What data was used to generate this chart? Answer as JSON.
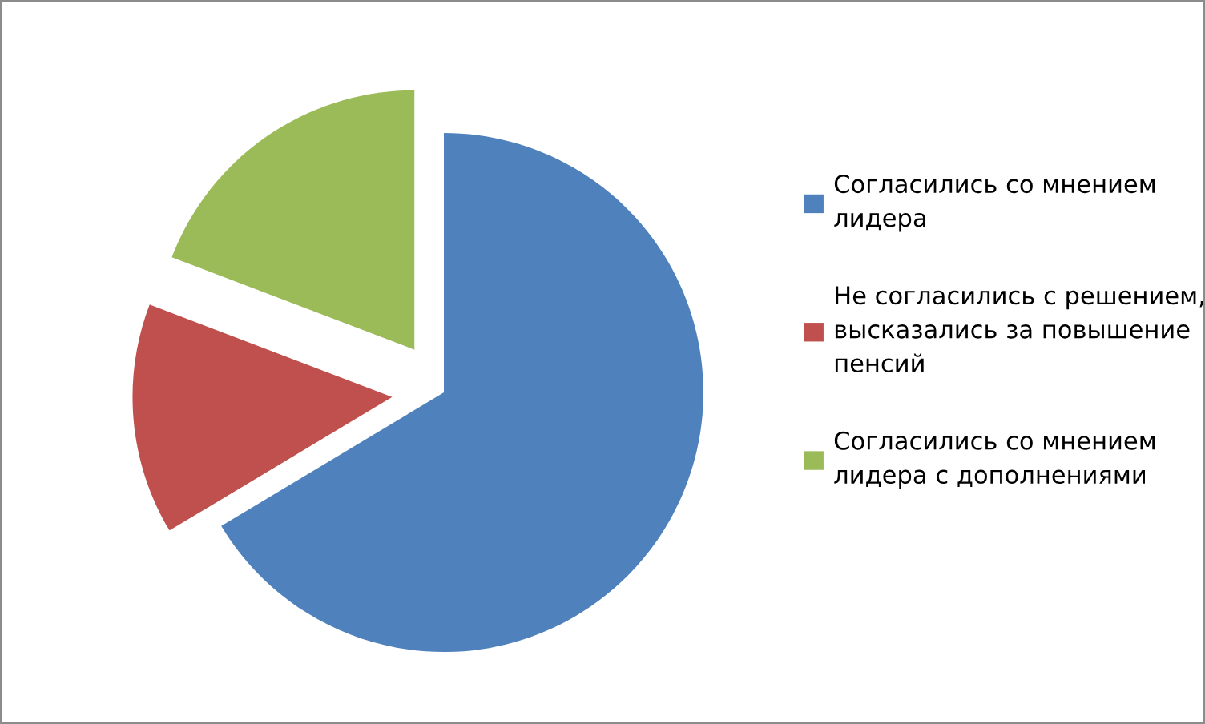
{
  "chart_data": {
    "type": "pie",
    "categories": [
      "Согласились со мнением лидера",
      "Не согласились с решением, высказались за повышение пенсий",
      "Согласились со мнением лидера с дополнениями"
    ],
    "values": [
      66.4,
      14.4,
      19.2
    ],
    "colors": [
      "#4f81bd",
      "#c0504d",
      "#9bbb59"
    ],
    "legend": "right"
  }
}
